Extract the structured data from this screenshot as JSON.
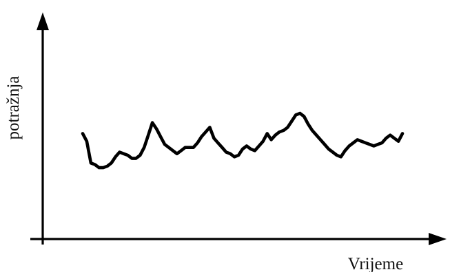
{
  "chart_data": {
    "type": "line",
    "title": "",
    "xlabel": "Vrijeme",
    "ylabel": "potražnja",
    "grid": false,
    "legend": "none",
    "line_color": "#000000",
    "ylim": [
      0,
      100
    ],
    "series": [
      {
        "x": [
          0,
          1,
          2,
          3,
          4,
          5,
          6,
          7,
          8,
          9,
          10,
          11,
          12,
          13,
          14,
          15,
          16,
          17,
          18,
          19,
          20,
          21,
          22,
          23,
          24,
          25,
          26,
          27,
          28,
          29,
          30,
          31,
          32,
          33,
          34,
          35,
          36,
          37,
          38,
          39,
          40,
          41,
          42,
          43,
          44,
          45,
          46,
          47,
          48,
          49,
          50,
          51,
          52,
          53,
          54,
          55,
          56,
          57,
          58,
          59,
          60,
          61,
          62,
          63,
          64,
          65,
          66,
          67,
          68,
          69,
          70,
          71,
          72,
          73,
          74,
          75,
          76,
          77,
          78
        ],
        "y": [
          60,
          55,
          41,
          40,
          38,
          38,
          39,
          41,
          45,
          48,
          47,
          46,
          44,
          44,
          46,
          51,
          59,
          67,
          63,
          58,
          53,
          51,
          49,
          47,
          49,
          51,
          51,
          51,
          54,
          58,
          61,
          64,
          57,
          54,
          51,
          48,
          47,
          45,
          46,
          50,
          52,
          50,
          49,
          52,
          55,
          60,
          56,
          59,
          61,
          62,
          64,
          68,
          72,
          73,
          71,
          66,
          62,
          59,
          56,
          53,
          50,
          48,
          46,
          45,
          49,
          52,
          54,
          56,
          55,
          54,
          53,
          52,
          53,
          54,
          57,
          59,
          57,
          55,
          60
        ]
      }
    ]
  }
}
